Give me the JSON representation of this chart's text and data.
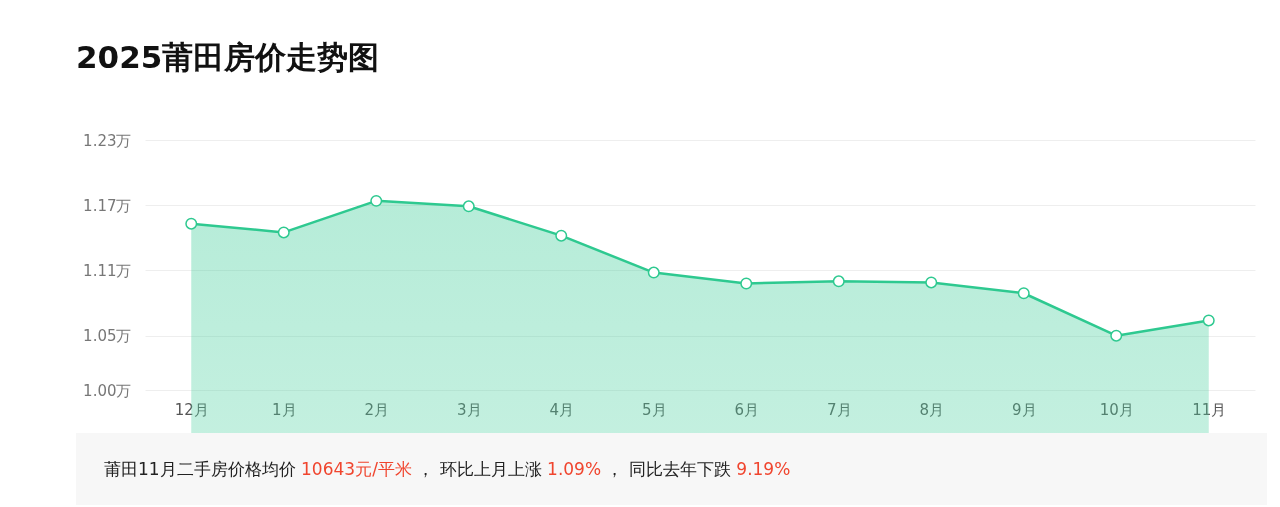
{
  "chart_data": {
    "type": "area",
    "title": "2025莆田房价走势图",
    "categories": [
      "12月",
      "1月",
      "2月",
      "3月",
      "4月",
      "5月",
      "6月",
      "7月",
      "8月",
      "9月",
      "10月",
      "11月"
    ],
    "series": [
      {
        "color": "#2ec990",
        "values": [
          1.153,
          1.145,
          1.174,
          1.169,
          1.142,
          1.108,
          1.098,
          1.1,
          1.099,
          1.089,
          1.05,
          1.064
        ]
      }
    ],
    "ylim": [
      1,
      1.23
    ],
    "yticks": [
      {
        "value": 1,
        "label": "1.00万"
      },
      {
        "value": 1.05,
        "label": "1.05万"
      },
      {
        "value": 1.11,
        "label": "1.11万"
      },
      {
        "value": 1.17,
        "label": "1.17万"
      },
      {
        "value": 1.23,
        "label": "1.23万"
      }
    ],
    "grid": "y",
    "marker": "circle",
    "annotations": [
      "莆田11月二手房价格均价 ",
      "10643元/平米",
      " ， 环比上月上涨 ",
      "1.09%",
      " ， 同比去年下跌 ",
      "9.19%"
    ]
  }
}
